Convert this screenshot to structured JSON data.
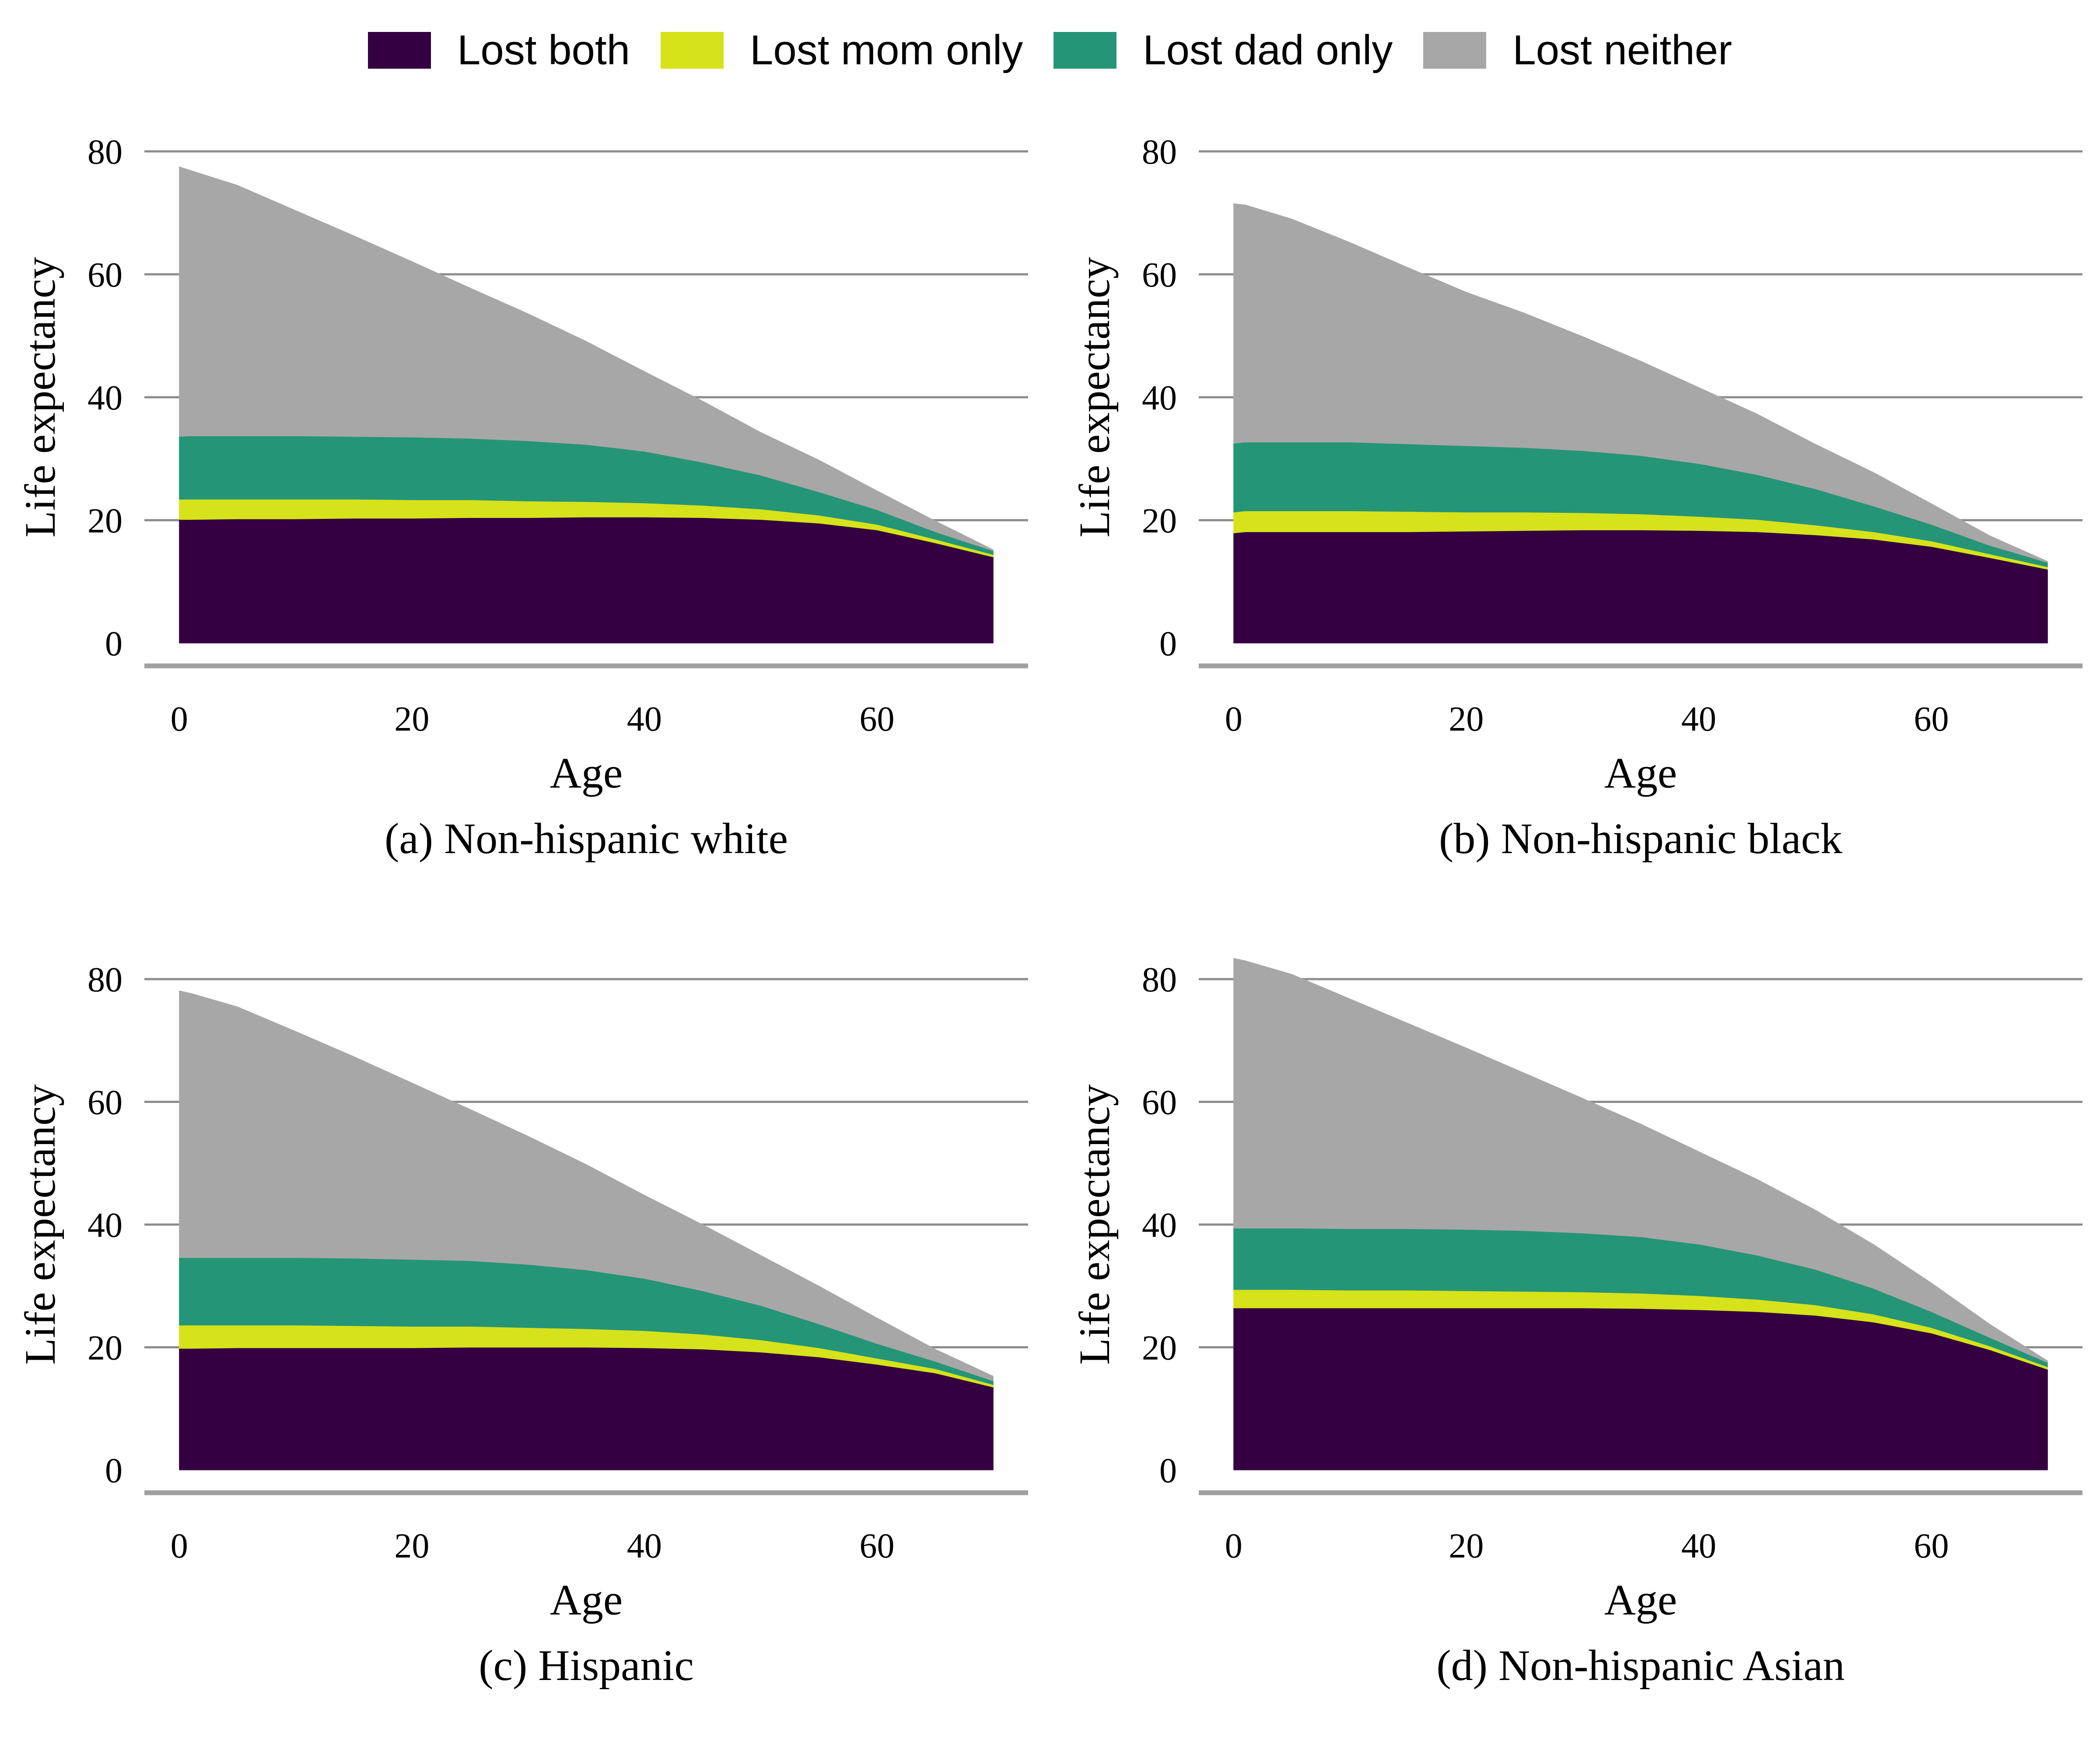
{
  "legend": {
    "items": [
      {
        "key": "lost_both",
        "label": "Lost both",
        "color": "#340042"
      },
      {
        "key": "lost_mom",
        "label": "Lost mom only",
        "color": "#d6e21a"
      },
      {
        "key": "lost_dad",
        "label": "Lost dad only",
        "color": "#259577"
      },
      {
        "key": "lost_neither",
        "label": "Lost neither",
        "color": "#a7a7a7"
      }
    ]
  },
  "chart_data": [
    {
      "type": "area",
      "stacked": true,
      "title": "(a) Non-hispanic white",
      "xlabel": "Age",
      "ylabel": "Life expectancy",
      "xlim": [
        -3,
        73
      ],
      "ylim": [
        0,
        80
      ],
      "xticks": [
        0,
        20,
        40,
        60
      ],
      "yticks": [
        0,
        20,
        40,
        60,
        80
      ],
      "grid": true,
      "x": [
        0,
        1,
        5,
        10,
        15,
        20,
        25,
        30,
        35,
        40,
        45,
        50,
        55,
        60,
        65,
        70
      ],
      "series": [
        {
          "name": "Lost both",
          "values": [
            20.1,
            20.1,
            20.2,
            20.2,
            20.3,
            20.3,
            20.4,
            20.4,
            20.5,
            20.5,
            20.4,
            20.1,
            19.5,
            18.4,
            16.3,
            14.0
          ]
        },
        {
          "name": "Lost mom only",
          "values": [
            3.3,
            3.3,
            3.2,
            3.2,
            3.1,
            3.0,
            2.9,
            2.7,
            2.5,
            2.3,
            2.0,
            1.7,
            1.3,
            0.9,
            0.6,
            0.4
          ]
        },
        {
          "name": "Lost dad only",
          "values": [
            10.2,
            10.3,
            10.3,
            10.3,
            10.2,
            10.2,
            10.0,
            9.8,
            9.3,
            8.4,
            7.0,
            5.5,
            3.8,
            2.4,
            1.2,
            0.6
          ]
        },
        {
          "name": "Lost neither",
          "values": [
            43.9,
            43.2,
            40.8,
            36.7,
            32.7,
            28.6,
            24.5,
            20.7,
            16.8,
            13.0,
            10.0,
            7.0,
            5.2,
            3.1,
            1.8,
            0.2
          ]
        }
      ]
    },
    {
      "type": "area",
      "stacked": true,
      "title": "(b) Non-hispanic black",
      "xlabel": "Age",
      "ylabel": "Life expectancy",
      "xlim": [
        -3,
        73
      ],
      "ylim": [
        0,
        80
      ],
      "xticks": [
        0,
        20,
        40,
        60
      ],
      "yticks": [
        0,
        20,
        40,
        60,
        80
      ],
      "grid": true,
      "x": [
        0,
        1,
        5,
        10,
        15,
        20,
        25,
        30,
        35,
        40,
        45,
        50,
        55,
        60,
        65,
        70
      ],
      "series": [
        {
          "name": "Lost both",
          "values": [
            17.9,
            18.1,
            18.1,
            18.1,
            18.1,
            18.2,
            18.3,
            18.4,
            18.4,
            18.3,
            18.1,
            17.6,
            16.9,
            15.7,
            13.9,
            12.0
          ]
        },
        {
          "name": "Lost mom only",
          "values": [
            3.4,
            3.4,
            3.4,
            3.4,
            3.3,
            3.1,
            3.0,
            2.8,
            2.6,
            2.3,
            2.0,
            1.6,
            1.2,
            0.9,
            0.6,
            0.4
          ]
        },
        {
          "name": "Lost dad only",
          "values": [
            11.2,
            11.2,
            11.2,
            11.2,
            11.0,
            10.8,
            10.5,
            10.1,
            9.5,
            8.6,
            7.3,
            5.9,
            4.2,
            2.7,
            1.4,
            0.7
          ]
        },
        {
          "name": "Lost neither",
          "values": [
            39.0,
            38.6,
            36.3,
            32.5,
            28.7,
            25.0,
            21.9,
            18.6,
            15.4,
            12.4,
            9.9,
            7.3,
            5.5,
            3.4,
            1.6,
            0.2
          ]
        }
      ]
    },
    {
      "type": "area",
      "stacked": true,
      "title": "(c) Hispanic",
      "xlabel": "Age",
      "ylabel": "Life expectancy",
      "xlim": [
        -3,
        73
      ],
      "ylim": [
        0,
        80
      ],
      "xticks": [
        0,
        20,
        40,
        60
      ],
      "yticks": [
        0,
        20,
        40,
        60,
        80
      ],
      "grid": true,
      "x": [
        0,
        1,
        5,
        10,
        15,
        20,
        25,
        30,
        35,
        40,
        45,
        50,
        55,
        60,
        65,
        70
      ],
      "series": [
        {
          "name": "Lost both",
          "values": [
            19.8,
            19.8,
            19.9,
            19.9,
            19.9,
            19.9,
            20.0,
            20.0,
            20.0,
            19.9,
            19.7,
            19.2,
            18.4,
            17.2,
            15.8,
            13.5
          ]
        },
        {
          "name": "Lost mom only",
          "values": [
            3.8,
            3.8,
            3.7,
            3.7,
            3.6,
            3.5,
            3.4,
            3.2,
            3.0,
            2.8,
            2.4,
            2.0,
            1.5,
            1.0,
            0.7,
            0.4
          ]
        },
        {
          "name": "Lost dad only",
          "values": [
            11.0,
            11.0,
            11.0,
            11.0,
            11.0,
            10.9,
            10.7,
            10.3,
            9.6,
            8.5,
            7.1,
            5.6,
            3.9,
            2.4,
            1.2,
            0.6
          ]
        },
        {
          "name": "Lost neither",
          "values": [
            43.5,
            43.1,
            40.9,
            36.9,
            32.9,
            28.8,
            24.7,
            20.9,
            17.2,
            13.6,
            10.8,
            8.2,
            6.2,
            4.2,
            2.0,
            0.8
          ]
        }
      ]
    },
    {
      "type": "area",
      "stacked": true,
      "title": "(d) Non-hispanic Asian",
      "xlabel": "Age",
      "ylabel": "Life expectancy",
      "xlim": [
        -3,
        73
      ],
      "ylim": [
        0,
        80
      ],
      "xticks": [
        0,
        20,
        40,
        60
      ],
      "yticks": [
        0,
        20,
        40,
        60,
        80
      ],
      "grid": true,
      "x": [
        0,
        1,
        5,
        10,
        15,
        20,
        25,
        30,
        35,
        40,
        45,
        50,
        55,
        60,
        65,
        70
      ],
      "series": [
        {
          "name": "Lost both",
          "values": [
            26.4,
            26.4,
            26.4,
            26.4,
            26.4,
            26.4,
            26.4,
            26.4,
            26.3,
            26.1,
            25.8,
            25.2,
            24.1,
            22.3,
            19.6,
            16.4
          ]
        },
        {
          "name": "Lost mom only",
          "values": [
            3.0,
            3.0,
            3.0,
            2.9,
            2.9,
            2.8,
            2.7,
            2.6,
            2.5,
            2.3,
            2.0,
            1.7,
            1.3,
            0.9,
            0.6,
            0.4
          ]
        },
        {
          "name": "Lost dad only",
          "values": [
            10.0,
            10.0,
            10.0,
            10.0,
            10.0,
            10.0,
            9.9,
            9.6,
            9.2,
            8.4,
            7.2,
            5.8,
            4.2,
            2.6,
            1.4,
            0.7
          ]
        },
        {
          "name": "Lost neither",
          "values": [
            44.0,
            43.6,
            41.4,
            37.5,
            33.5,
            29.6,
            25.7,
            22.0,
            18.4,
            15.1,
            12.4,
            9.7,
            7.2,
            4.7,
            2.2,
            0.3
          ]
        }
      ]
    }
  ]
}
